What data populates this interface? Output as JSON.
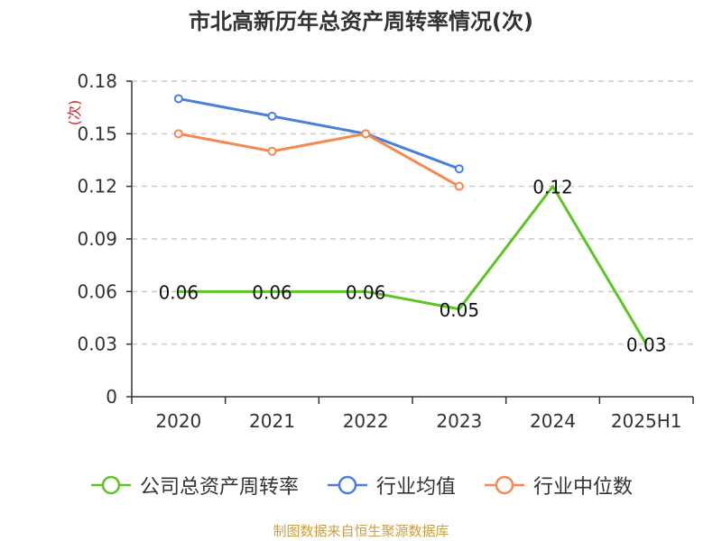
{
  "chart_data": {
    "type": "line",
    "title": "市北高新历年总资产周转率情况(次)",
    "ylabel": "(次)",
    "xlabel": "",
    "categories": [
      "2020",
      "2021",
      "2022",
      "2023",
      "2024",
      "2025H1"
    ],
    "ylim": [
      0,
      0.18
    ],
    "yticks": [
      "0",
      "0.03",
      "0.06",
      "0.09",
      "0.12",
      "0.15",
      "0.18"
    ],
    "grid": true,
    "legend_position": "bottom",
    "series": [
      {
        "name": "公司总资产周转率",
        "color": "#5ec424",
        "values": [
          0.06,
          0.06,
          0.06,
          0.05,
          0.12,
          0.03
        ],
        "labels": [
          "0.06",
          "0.06",
          "0.06",
          "0.05",
          "0.12",
          "0.03"
        ]
      },
      {
        "name": "行业均值",
        "color": "#4a7fdb",
        "values": [
          0.17,
          0.16,
          0.15,
          0.13,
          null,
          null
        ]
      },
      {
        "name": "行业中位数",
        "color": "#f5894f",
        "values": [
          0.15,
          0.14,
          0.15,
          0.12,
          null,
          null
        ]
      }
    ]
  },
  "source_note": "制图数据来自恒生聚源数据库"
}
